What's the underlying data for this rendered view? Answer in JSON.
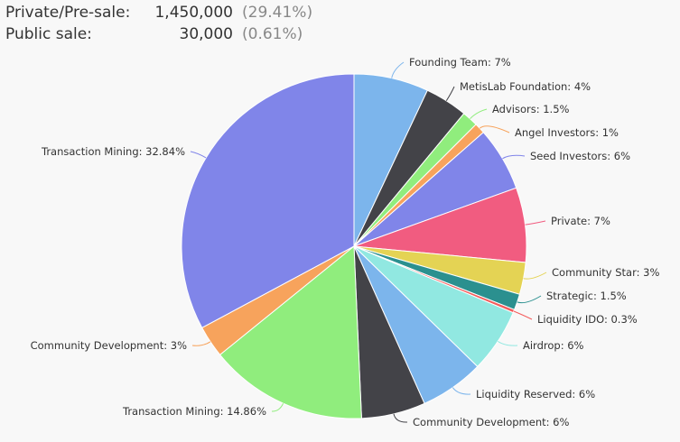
{
  "summary": [
    {
      "label": "Private/Pre-sale:",
      "amount": "1,450,000",
      "percent": "(29.41%)"
    },
    {
      "label": "Public sale:",
      "amount": "30,000",
      "percent": "(0.61%)"
    }
  ],
  "chart_data": {
    "type": "pie",
    "title": "",
    "slices": [
      {
        "label": "Founding Team: 7%",
        "value": 7,
        "color": "#7cb5ec"
      },
      {
        "label": "MetisLab Foundation: 4%",
        "value": 4,
        "color": "#434348"
      },
      {
        "label": "Advisors: 1.5%",
        "value": 1.5,
        "color": "#90ed7d"
      },
      {
        "label": "Angel Investors: 1%",
        "value": 1,
        "color": "#f7a35c"
      },
      {
        "label": "Seed Investors: 6%",
        "value": 6,
        "color": "#8085e9"
      },
      {
        "label": "Private: 7%",
        "value": 7,
        "color": "#f15c80"
      },
      {
        "label": "Community Star: 3%",
        "value": 3,
        "color": "#e4d354"
      },
      {
        "label": "Strategic: 1.5%",
        "value": 1.5,
        "color": "#2b908f"
      },
      {
        "label": "Liquidity IDO: 0.3%",
        "value": 0.3,
        "color": "#f45b5b"
      },
      {
        "label": "Airdrop: 6%",
        "value": 6,
        "color": "#91e8e1"
      },
      {
        "label": "Liquidity Reserved: 6%",
        "value": 6,
        "color": "#7cb5ec"
      },
      {
        "label": "Community Development: 6%",
        "value": 6,
        "color": "#434348"
      },
      {
        "label": "Transaction Mining: 14.86%",
        "value": 14.86,
        "color": "#90ed7d"
      },
      {
        "label": "Community Development: 3%",
        "value": 3,
        "color": "#f7a35c"
      },
      {
        "label": "Transaction Mining: 32.84%",
        "value": 32.84,
        "color": "#8085e9"
      }
    ]
  }
}
